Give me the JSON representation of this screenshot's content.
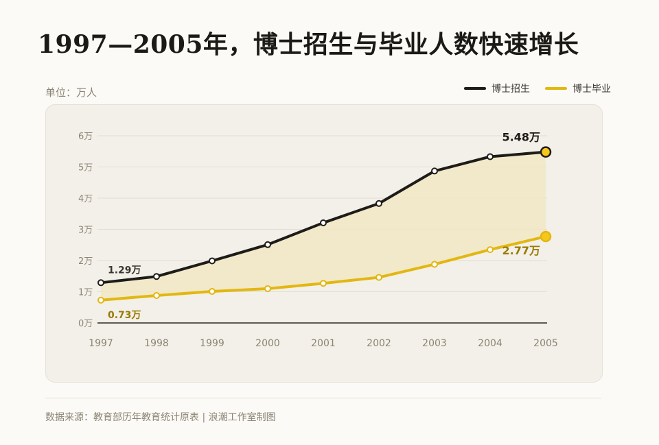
{
  "title": "1997—2005年，博士招生与毕业人数快速增长",
  "unit_label": "单位：万人",
  "source": "数据来源：教育部历年教育统计原表 | 浪潮工作室制图",
  "colors": {
    "enroll": "#1e1c19",
    "graduate": "#e2b711",
    "area_fill": "#f1e8c4",
    "grid": "#e2ddd2",
    "axis": "#2a2824"
  },
  "chart_data": {
    "type": "line",
    "title": "1997—2005年，博士招生与毕业人数快速增长",
    "xlabel": "",
    "ylabel": "单位：万人",
    "categories": [
      "1997",
      "1998",
      "1999",
      "2000",
      "2001",
      "2002",
      "2003",
      "2004",
      "2005"
    ],
    "y_ticks": [
      "0万",
      "1万",
      "2万",
      "3万",
      "4万",
      "5万",
      "6万"
    ],
    "ylim": [
      0,
      6
    ],
    "grid": true,
    "legend_position": "top-right",
    "area_between_series": true,
    "series": [
      {
        "name": "博士招生",
        "color": "#1e1c19",
        "values": [
          1.29,
          1.49,
          1.99,
          2.51,
          3.21,
          3.83,
          4.87,
          5.33,
          5.48
        ],
        "labels": [
          {
            "index": 0,
            "text": "1.29万"
          },
          {
            "index": 8,
            "text": "5.48万"
          }
        ]
      },
      {
        "name": "博士毕业",
        "color": "#e2b711",
        "values": [
          0.73,
          0.88,
          1.01,
          1.1,
          1.27,
          1.46,
          1.88,
          2.35,
          2.77
        ],
        "labels": [
          {
            "index": 0,
            "text": "0.73万"
          },
          {
            "index": 8,
            "text": "2.77万"
          }
        ]
      }
    ]
  }
}
